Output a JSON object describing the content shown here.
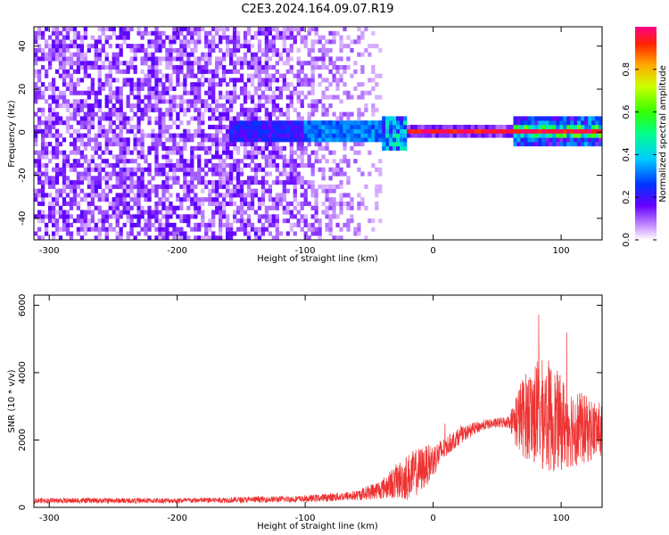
{
  "title": "C2E3.2024.164.09.07.R19",
  "chart_data": [
    {
      "type": "heatmap",
      "xlabel": "Height of straight line (km)",
      "ylabel": "Frequency (Hz)",
      "xlim": [
        -312,
        132
      ],
      "ylim": [
        -50,
        49
      ],
      "xticks": [
        "-300",
        "-200",
        "-100",
        "0",
        "100"
      ],
      "xtick_values": [
        -300,
        -200,
        -100,
        0,
        100
      ],
      "yticks": [
        "-40",
        "-20",
        "0",
        "20",
        "40"
      ],
      "ytick_values": [
        -40,
        -20,
        0,
        20,
        40
      ],
      "colorbar": {
        "label": "Normalized spectral amplitude",
        "range": [
          0,
          1
        ],
        "ticks": [
          "0.0",
          "0.2",
          "0.4",
          "0.6",
          "0.8"
        ],
        "tick_values": [
          0.0,
          0.2,
          0.4,
          0.6,
          0.8
        ]
      },
      "noise_floor_extent_km": [
        -312,
        -40
      ],
      "signal_band_hz": [
        -4,
        4
      ],
      "strong_signal_segments_km": [
        [
          -20,
          60
        ],
        [
          62,
          132
        ]
      ],
      "grid": false
    },
    {
      "type": "line",
      "xlabel": "Height of straight line (km)",
      "ylabel": "SNR (10 * v/v)",
      "xlim": [
        -312,
        132
      ],
      "ylim": [
        0,
        6300
      ],
      "xticks": [
        "-300",
        "-200",
        "-100",
        "0",
        "100"
      ],
      "xtick_values": [
        -300,
        -200,
        -100,
        0,
        100
      ],
      "yticks": [
        "0",
        "2000",
        "4000",
        "6000"
      ],
      "ytick_values": [
        0,
        2000,
        4000,
        6000
      ],
      "series_color": "#ee3333",
      "envelope": {
        "x": [
          -312,
          -200,
          -100,
          -60,
          -40,
          -30,
          -20,
          -10,
          0,
          10,
          20,
          30,
          40,
          50,
          60,
          65,
          70,
          80,
          90,
          100,
          110,
          120,
          132
        ],
        "mean": [
          200,
          200,
          250,
          350,
          550,
          750,
          900,
          1100,
          1400,
          1800,
          2100,
          2300,
          2450,
          2500,
          2550,
          2600,
          2700,
          2800,
          2700,
          2500,
          2400,
          2300,
          2300
        ],
        "spread": [
          80,
          80,
          100,
          150,
          300,
          500,
          700,
          700,
          500,
          300,
          250,
          200,
          150,
          150,
          200,
          900,
          1200,
          1600,
          1700,
          1400,
          1200,
          1000,
          800
        ]
      },
      "grid": false
    }
  ]
}
